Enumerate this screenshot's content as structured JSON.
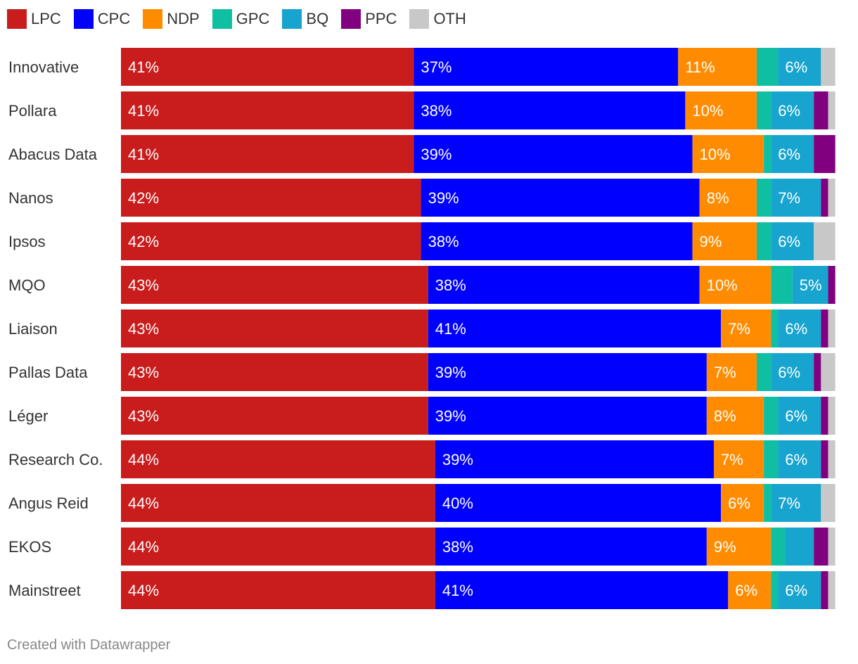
{
  "colors": {
    "LPC": "#c91c1c",
    "CPC": "#0000ff",
    "NDP": "#ff8c00",
    "GPC": "#0ebfa1",
    "BQ": "#17a4cf",
    "PPC": "#800080",
    "OTH": "#c8c8c8"
  },
  "chart_data": {
    "type": "bar",
    "orientation": "horizontal",
    "stacked": true,
    "title": "",
    "xlabel": "",
    "ylabel": "",
    "xlim": [
      0,
      102
    ],
    "legend_position": "top-left",
    "categories": [
      "Innovative",
      "Pollara",
      "Abacus Data",
      "Nanos",
      "Ipsos",
      "MQO",
      "Liaison",
      "Pallas Data",
      "Léger",
      "Research Co.",
      "Angus Reid",
      "EKOS",
      "Mainstreet"
    ],
    "series": [
      {
        "name": "LPC",
        "values": [
          41,
          41,
          41,
          42,
          42,
          43,
          43,
          43,
          43,
          44,
          44,
          44,
          44
        ]
      },
      {
        "name": "CPC",
        "values": [
          37,
          38,
          39,
          39,
          38,
          38,
          41,
          39,
          39,
          39,
          40,
          38,
          41
        ]
      },
      {
        "name": "NDP",
        "values": [
          11,
          10,
          10,
          8,
          9,
          10,
          7,
          7,
          8,
          7,
          6,
          9,
          6
        ]
      },
      {
        "name": "GPC",
        "values": [
          3,
          2,
          1,
          2,
          2,
          3,
          1,
          2,
          2,
          2,
          1,
          2,
          1
        ]
      },
      {
        "name": "BQ",
        "values": [
          6,
          6,
          6,
          7,
          6,
          5,
          6,
          6,
          6,
          6,
          7,
          4,
          6
        ]
      },
      {
        "name": "PPC",
        "values": [
          0,
          2,
          3,
          1,
          0,
          1,
          1,
          1,
          1,
          1,
          0,
          2,
          1
        ]
      },
      {
        "name": "OTH",
        "values": [
          2,
          1,
          0,
          1,
          3,
          0,
          1,
          2,
          1,
          1,
          2,
          1,
          1
        ]
      }
    ],
    "data_labels": [
      [
        "41%",
        "37%",
        "11%",
        "",
        "6%",
        "",
        ""
      ],
      [
        "41%",
        "38%",
        "10%",
        "",
        "6%",
        "",
        ""
      ],
      [
        "41%",
        "39%",
        "10%",
        "",
        "6%",
        "",
        ""
      ],
      [
        "42%",
        "39%",
        "8%",
        "",
        "7%",
        "",
        ""
      ],
      [
        "42%",
        "38%",
        "9%",
        "",
        "6%",
        "",
        ""
      ],
      [
        "43%",
        "38%",
        "10%",
        "",
        "5%",
        "",
        ""
      ],
      [
        "43%",
        "41%",
        "7%",
        "",
        "6%",
        "",
        ""
      ],
      [
        "43%",
        "39%",
        "7%",
        "",
        "6%",
        "",
        ""
      ],
      [
        "43%",
        "39%",
        "8%",
        "",
        "6%",
        "",
        ""
      ],
      [
        "44%",
        "39%",
        "7%",
        "",
        "6%",
        "",
        ""
      ],
      [
        "44%",
        "40%",
        "6%",
        "",
        "7%",
        "",
        ""
      ],
      [
        "44%",
        "38%",
        "9%",
        "",
        "",
        "",
        ""
      ],
      [
        "44%",
        "41%",
        "6%",
        "",
        "6%",
        "",
        ""
      ]
    ]
  },
  "footer": {
    "credit": "Created with Datawrapper"
  }
}
